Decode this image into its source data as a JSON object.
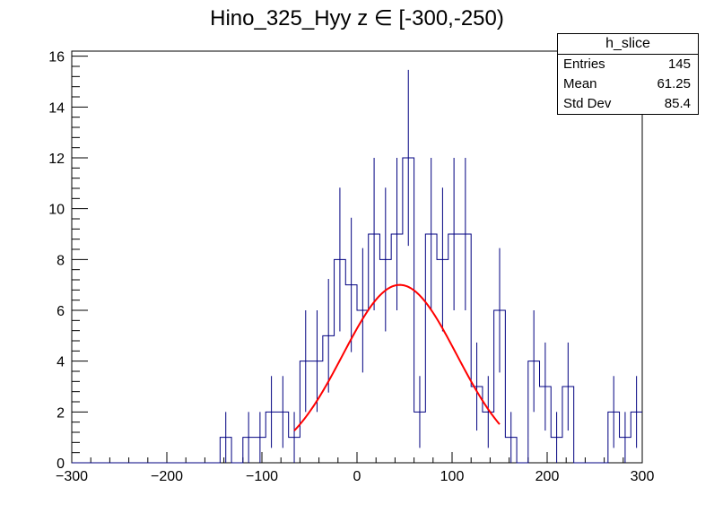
{
  "chart_data": {
    "type": "histogram",
    "title": "Hino_325_Hyy z  ∈ [-300,-250)",
    "xlabel": "",
    "ylabel": "",
    "xlim": [
      -300,
      300
    ],
    "ylim": [
      0,
      16.2
    ],
    "x_ticks": [
      -300,
      -200,
      -100,
      0,
      100,
      200,
      300
    ],
    "y_ticks": [
      0,
      2,
      4,
      6,
      8,
      10,
      12,
      14,
      16
    ],
    "bin_width": 12,
    "bin_lows": [
      -300,
      -288,
      -276,
      -264,
      -252,
      -240,
      -228,
      -216,
      -204,
      -192,
      -180,
      -168,
      -156,
      -144,
      -132,
      -120,
      -108,
      -96,
      -84,
      -72,
      -60,
      -48,
      -36,
      -24,
      -12,
      0,
      12,
      24,
      36,
      48,
      60,
      72,
      84,
      96,
      108,
      120,
      132,
      144,
      156,
      168,
      180,
      192,
      204,
      216,
      228,
      240,
      252,
      264,
      276,
      288
    ],
    "values": [
      0,
      0,
      0,
      0,
      0,
      0,
      0,
      0,
      0,
      0,
      0,
      0,
      0,
      1,
      0,
      1,
      1,
      2,
      2,
      1,
      4,
      4,
      5,
      8,
      7,
      6,
      9,
      8,
      9,
      12,
      2,
      9,
      8,
      9,
      9,
      3,
      2,
      6,
      1,
      0,
      4,
      3,
      1,
      3,
      0,
      0,
      0,
      2,
      1,
      2
    ],
    "series_color": "#000080",
    "fit": {
      "color": "#ff0000",
      "function": "gaus",
      "amplitude": 7.0,
      "mean": 45,
      "sigma": 60,
      "xrange": [
        -66,
        150
      ]
    },
    "stats_box": {
      "header": "h_slice",
      "rows": [
        {
          "label": "Entries",
          "value": "145"
        },
        {
          "label": "Mean",
          "value": "61.25"
        },
        {
          "label": "Std Dev",
          "value": "85.4"
        }
      ]
    }
  }
}
